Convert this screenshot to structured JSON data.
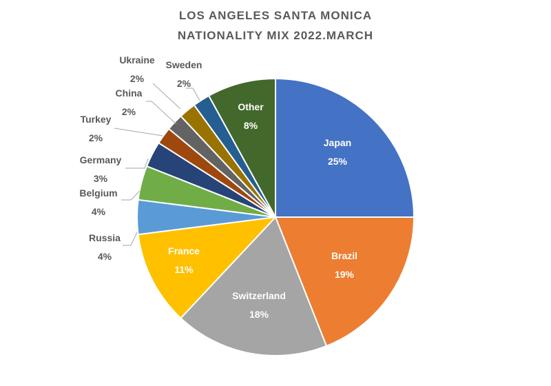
{
  "chart_data": {
    "type": "pie",
    "title": [
      "LOS ANGELES SANTA MONICA",
      "NATIONALITY MIX 2022.MARCH"
    ],
    "slices": [
      {
        "label": "Japan",
        "value": 25,
        "value_label": "25%",
        "color": "#4472C4"
      },
      {
        "label": "Brazil",
        "value": 19,
        "value_label": "19%",
        "color": "#ED7D31"
      },
      {
        "label": "Switzerland",
        "value": 18,
        "value_label": "18%",
        "color": "#A5A5A5"
      },
      {
        "label": "France",
        "value": 11,
        "value_label": "11%",
        "color": "#FFC000"
      },
      {
        "label": "Russia",
        "value": 4,
        "value_label": "4%",
        "color": "#5B9BD5"
      },
      {
        "label": "Belgium",
        "value": 4,
        "value_label": "4%",
        "color": "#70AD47"
      },
      {
        "label": "Germany",
        "value": 3,
        "value_label": "3%",
        "color": "#264478"
      },
      {
        "label": "Turkey",
        "value": 2,
        "value_label": "2%",
        "color": "#9E480E"
      },
      {
        "label": "China",
        "value": 2,
        "value_label": "2%",
        "color": "#636363"
      },
      {
        "label": "Ukraine",
        "value": 2,
        "value_label": "2%",
        "color": "#997300"
      },
      {
        "label": "Sweden",
        "value": 2,
        "value_label": "2%",
        "color": "#255E91"
      },
      {
        "label": "Other",
        "value": 8,
        "value_label": "8%",
        "color": "#43682B"
      }
    ],
    "legend": "none",
    "start_angle": "12 o'clock, clockwise"
  }
}
